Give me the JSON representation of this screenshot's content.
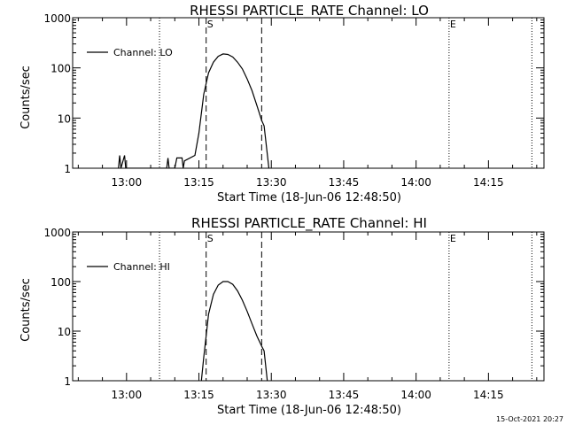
{
  "footer_date": "15-Oct-2021 20:27",
  "chart_data": [
    {
      "type": "line",
      "title": "RHESSI PARTICLE_RATE Channel: LO",
      "xlabel": "Start Time (18-Jun-06 12:48:50)",
      "ylabel": "Counts/sec",
      "yscale": "log",
      "ylim": [
        1,
        1000
      ],
      "xlim": [
        "12:48:50",
        "14:26:30"
      ],
      "x_ticks": [
        "13:00",
        "13:15",
        "13:30",
        "13:45",
        "14:00",
        "14:15"
      ],
      "y_ticks": [
        "1",
        "10",
        "100",
        "1000"
      ],
      "grid": false,
      "legend_position": "top-left",
      "series": [
        {
          "name": "Channel: LO",
          "points": [
            [
              "12:58:20",
              1
            ],
            [
              "12:58:35",
              1.8
            ],
            [
              "12:58:50",
              1
            ],
            [
              "12:59:35",
              1.8
            ],
            [
              "12:59:50",
              1
            ],
            [
              "13:08:20",
              1
            ],
            [
              "13:08:35",
              1.6
            ],
            [
              "13:08:50",
              1
            ],
            [
              "13:10:00",
              1
            ],
            [
              "13:10:25",
              1.6
            ],
            [
              "13:11:30",
              1.6
            ],
            [
              "13:11:45",
              1
            ],
            [
              "13:12:00",
              1.4
            ],
            [
              "13:14:10",
              1.8
            ],
            [
              "13:15:00",
              5
            ],
            [
              "13:16:00",
              30
            ],
            [
              "13:17:00",
              80
            ],
            [
              "13:18:00",
              130
            ],
            [
              "13:19:00",
              170
            ],
            [
              "13:20:00",
              190
            ],
            [
              "13:21:00",
              185
            ],
            [
              "13:22:00",
              165
            ],
            [
              "13:23:00",
              130
            ],
            [
              "13:24:00",
              95
            ],
            [
              "13:25:00",
              60
            ],
            [
              "13:26:00",
              35
            ],
            [
              "13:27:00",
              18
            ],
            [
              "13:28:00",
              9
            ],
            [
              "13:28:30",
              7
            ],
            [
              "13:29:30",
              1
            ]
          ]
        }
      ],
      "markers": [
        {
          "label": "S",
          "time": "13:16:30",
          "style": "dashed"
        },
        {
          "label": "",
          "time": "13:28:00",
          "style": "dashed"
        },
        {
          "label": "E",
          "time": "14:06:50",
          "style": "dotted"
        },
        {
          "label": "",
          "time": "13:06:50",
          "style": "dotted"
        },
        {
          "label": "",
          "time": "14:24:00",
          "style": "dotted"
        }
      ]
    },
    {
      "type": "line",
      "title": "RHESSI PARTICLE_RATE Channel: HI",
      "xlabel": "Start Time (18-Jun-06 12:48:50)",
      "ylabel": "Counts/sec",
      "yscale": "log",
      "ylim": [
        1,
        1000
      ],
      "xlim": [
        "12:48:50",
        "14:26:30"
      ],
      "x_ticks": [
        "13:00",
        "13:15",
        "13:30",
        "13:45",
        "14:00",
        "14:15"
      ],
      "y_ticks": [
        "1",
        "10",
        "100",
        "1000"
      ],
      "grid": false,
      "legend_position": "top-left",
      "series": [
        {
          "name": "Channel: HI",
          "points": [
            [
              "13:15:30",
              1
            ],
            [
              "13:16:00",
              3
            ],
            [
              "13:16:30",
              8
            ],
            [
              "13:17:00",
              22
            ],
            [
              "13:18:00",
              55
            ],
            [
              "13:19:00",
              85
            ],
            [
              "13:20:00",
              100
            ],
            [
              "13:21:00",
              100
            ],
            [
              "13:22:00",
              88
            ],
            [
              "13:23:00",
              65
            ],
            [
              "13:24:00",
              42
            ],
            [
              "13:25:00",
              25
            ],
            [
              "13:26:00",
              14
            ],
            [
              "13:27:00",
              8
            ],
            [
              "13:28:00",
              5
            ],
            [
              "13:28:30",
              4
            ],
            [
              "13:29:10",
              1
            ]
          ]
        }
      ],
      "markers": [
        {
          "label": "S",
          "time": "13:16:30",
          "style": "dashed"
        },
        {
          "label": "",
          "time": "13:28:00",
          "style": "dashed"
        },
        {
          "label": "E",
          "time": "14:06:50",
          "style": "dotted"
        },
        {
          "label": "",
          "time": "13:06:50",
          "style": "dotted"
        },
        {
          "label": "",
          "time": "14:24:00",
          "style": "dotted"
        }
      ]
    }
  ]
}
